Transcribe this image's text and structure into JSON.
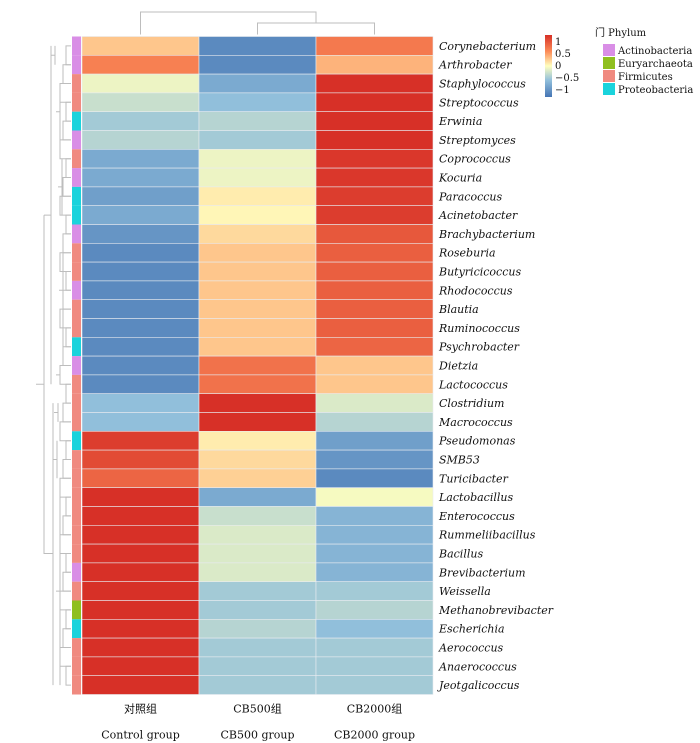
{
  "chart_data": {
    "type": "heatmap",
    "columns": [
      "对照组",
      "CB500组",
      "CB2000组"
    ],
    "columns_en": [
      "Control group",
      "CB500 group",
      "CB2000 group"
    ],
    "rows": [
      {
        "genus": "Corynebacterium",
        "phylum": "Actinobacteria",
        "values": [
          0.3,
          -1.1,
          0.75
        ]
      },
      {
        "genus": "Arthrobacter",
        "phylum": "Actinobacteria",
        "values": [
          0.7,
          -1.1,
          0.4
        ]
      },
      {
        "genus": "Staphylococcus",
        "phylum": "Firmicutes",
        "values": [
          -0.1,
          -0.8,
          1.3
        ]
      },
      {
        "genus": "Streptococcus",
        "phylum": "Firmicutes",
        "values": [
          -0.3,
          -0.6,
          1.3
        ]
      },
      {
        "genus": "Erwinia",
        "phylum": "Proteobacteria",
        "values": [
          -0.5,
          -0.4,
          1.3
        ]
      },
      {
        "genus": "Streptomyces",
        "phylum": "Actinobacteria",
        "values": [
          -0.4,
          -0.5,
          1.3
        ]
      },
      {
        "genus": "Coprococcus",
        "phylum": "Firmicutes",
        "values": [
          -0.8,
          -0.1,
          1.25
        ]
      },
      {
        "genus": "Kocuria",
        "phylum": "Actinobacteria",
        "values": [
          -0.8,
          -0.1,
          1.25
        ]
      },
      {
        "genus": "Paracoccus",
        "phylum": "Proteobacteria",
        "values": [
          -0.9,
          0.1,
          1.2
        ]
      },
      {
        "genus": "Acinetobacter",
        "phylum": "Proteobacteria",
        "values": [
          -0.8,
          0.05,
          1.2
        ]
      },
      {
        "genus": "Brachybacterium",
        "phylum": "Actinobacteria",
        "values": [
          -1.0,
          0.2,
          1.0
        ]
      },
      {
        "genus": "Roseburia",
        "phylum": "Firmicutes",
        "values": [
          -1.1,
          0.3,
          0.95
        ]
      },
      {
        "genus": "Butyricicoccus",
        "phylum": "Firmicutes",
        "values": [
          -1.1,
          0.3,
          0.95
        ]
      },
      {
        "genus": "Rhodococcus",
        "phylum": "Actinobacteria",
        "values": [
          -1.1,
          0.3,
          0.95
        ]
      },
      {
        "genus": "Blautia",
        "phylum": "Firmicutes",
        "values": [
          -1.1,
          0.3,
          0.95
        ]
      },
      {
        "genus": "Ruminococcus",
        "phylum": "Firmicutes",
        "values": [
          -1.1,
          0.3,
          0.95
        ]
      },
      {
        "genus": "Psychrobacter",
        "phylum": "Proteobacteria",
        "values": [
          -1.1,
          0.3,
          0.9
        ]
      },
      {
        "genus": "Dietzia",
        "phylum": "Actinobacteria",
        "values": [
          -1.1,
          0.8,
          0.3
        ]
      },
      {
        "genus": "Lactococcus",
        "phylum": "Firmicutes",
        "values": [
          -1.1,
          0.8,
          0.3
        ]
      },
      {
        "genus": "Clostridium",
        "phylum": "Firmicutes",
        "values": [
          -0.6,
          1.3,
          -0.2
        ]
      },
      {
        "genus": "Macrococcus",
        "phylum": "Firmicutes",
        "values": [
          -0.6,
          1.3,
          -0.4
        ]
      },
      {
        "genus": "Pseudomonas",
        "phylum": "Proteobacteria",
        "values": [
          1.2,
          0.1,
          -0.9
        ]
      },
      {
        "genus": "SMB53",
        "phylum": "Firmicutes",
        "values": [
          1.1,
          0.2,
          -1.0
        ]
      },
      {
        "genus": "Turicibacter",
        "phylum": "Firmicutes",
        "values": [
          0.9,
          0.25,
          -1.1
        ]
      },
      {
        "genus": "Lactobacillus",
        "phylum": "Firmicutes",
        "values": [
          1.3,
          -0.8,
          -0.05
        ]
      },
      {
        "genus": "Enterococcus",
        "phylum": "Firmicutes",
        "values": [
          1.3,
          -0.3,
          -0.7
        ]
      },
      {
        "genus": "Rummeliibacillus",
        "phylum": "Firmicutes",
        "values": [
          1.3,
          -0.2,
          -0.7
        ]
      },
      {
        "genus": "Bacillus",
        "phylum": "Firmicutes",
        "values": [
          1.3,
          -0.2,
          -0.7
        ]
      },
      {
        "genus": "Brevibacterium",
        "phylum": "Actinobacteria",
        "values": [
          1.3,
          -0.2,
          -0.7
        ]
      },
      {
        "genus": "Weissella",
        "phylum": "Firmicutes",
        "values": [
          1.3,
          -0.5,
          -0.5
        ]
      },
      {
        "genus": "Methanobrevibacter",
        "phylum": "Euryarchaeota",
        "values": [
          1.3,
          -0.5,
          -0.4
        ]
      },
      {
        "genus": "Escherichia",
        "phylum": "Proteobacteria",
        "values": [
          1.3,
          -0.4,
          -0.6
        ]
      },
      {
        "genus": "Aerococcus",
        "phylum": "Firmicutes",
        "values": [
          1.3,
          -0.5,
          -0.5
        ]
      },
      {
        "genus": "Anaerococcus",
        "phylum": "Firmicutes",
        "values": [
          1.3,
          -0.5,
          -0.5
        ]
      },
      {
        "genus": "Jeotgalicoccus",
        "phylum": "Firmicutes",
        "values": [
          1.3,
          -0.5,
          -0.5
        ]
      }
    ],
    "colorbar": {
      "ticks": [
        "1",
        "0.5",
        "0",
        "−0.5",
        "−1"
      ],
      "stops": [
        {
          "v": -1.3,
          "color": "#4575b4"
        },
        {
          "v": -0.6,
          "color": "#91bfdb"
        },
        {
          "v": 0.0,
          "color": "#ffffbf"
        },
        {
          "v": 0.6,
          "color": "#fc8d59"
        },
        {
          "v": 1.3,
          "color": "#d73027"
        }
      ]
    },
    "legend": {
      "title": "门 Phylum",
      "items": [
        {
          "label": "Actinobacteria",
          "color": "#d98ee6"
        },
        {
          "label": "Euryarchaeota",
          "color": "#8fbf1f"
        },
        {
          "label": "Firmicutes",
          "color": "#f08a80"
        },
        {
          "label": "Proteobacteria",
          "color": "#1ad3dc"
        }
      ]
    },
    "column_dendrogram": [
      {
        "left": 1,
        "right": 2
      },
      {
        "left": 0,
        "right": "0-1"
      }
    ]
  }
}
